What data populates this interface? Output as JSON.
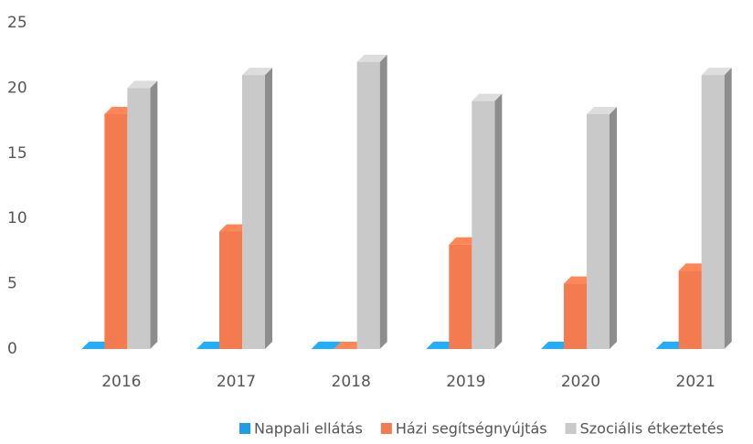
{
  "chart_data": {
    "type": "bar3d",
    "categories": [
      "2016",
      "2017",
      "2018",
      "2019",
      "2020",
      "2021"
    ],
    "series": [
      {
        "name": "Nappali ellátás",
        "color": "#1f9ee3",
        "values": [
          0,
          0,
          0,
          0,
          0,
          0
        ]
      },
      {
        "name": "Házi segítségnyújtás",
        "color": "#f47b4f",
        "values": [
          18,
          9,
          0,
          8,
          5,
          6
        ]
      },
      {
        "name": "Szociális étkeztetés",
        "color": "#c9c9c9",
        "values": [
          20,
          21,
          22,
          19,
          18,
          21
        ]
      }
    ],
    "ylim": [
      0,
      25
    ],
    "yticks": [
      0,
      5,
      10,
      15,
      20,
      25
    ],
    "grid": false,
    "legend": "bottom"
  }
}
